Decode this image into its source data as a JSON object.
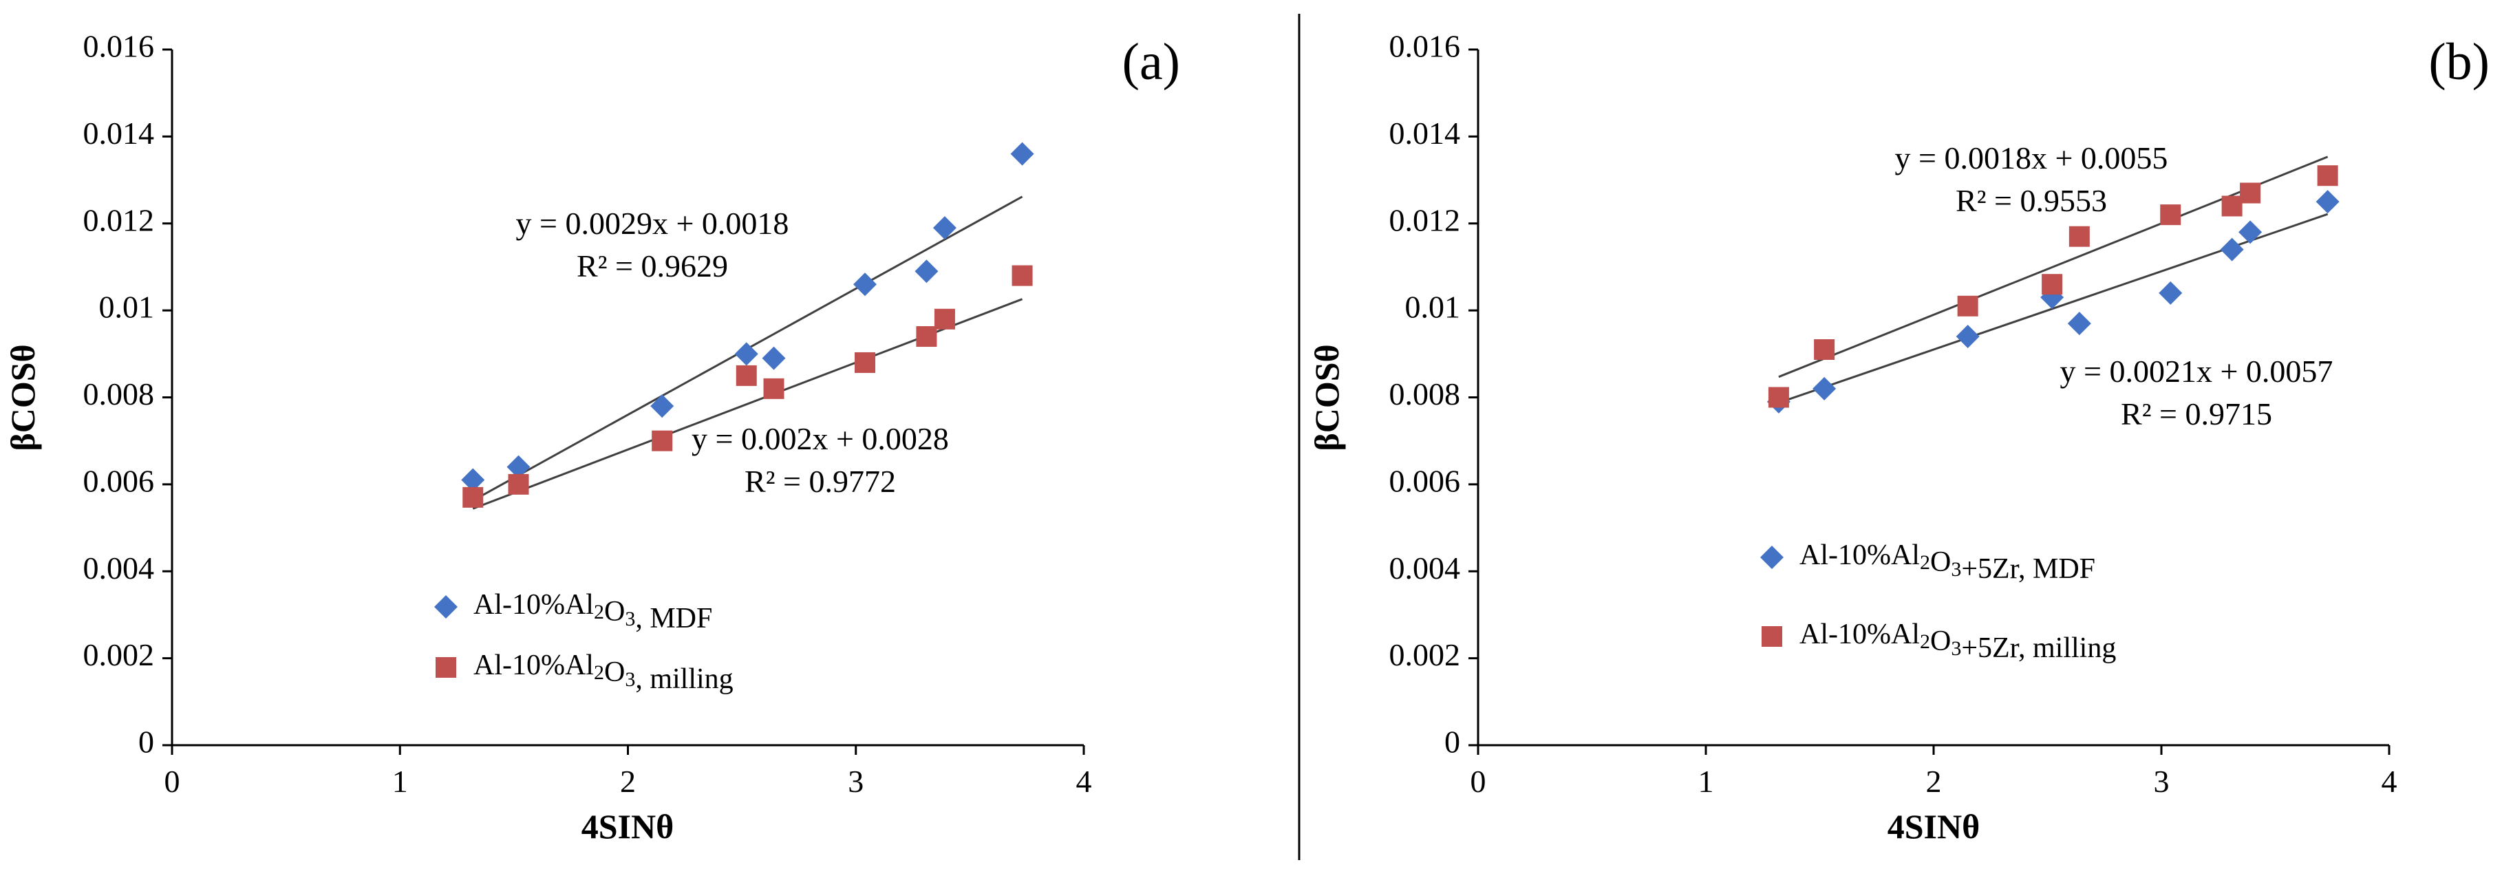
{
  "colors": {
    "mdf": "#4472C4",
    "milling": "#C0504D",
    "trendline": "#404040",
    "axis": "#000000"
  },
  "chart_data": [
    {
      "type": "scatter",
      "panel_label": "(a)",
      "xlabel": "4SINθ",
      "ylabel": "βCOSθ",
      "xlim": [
        0,
        4
      ],
      "ylim": [
        0,
        0.016
      ],
      "x_ticks": [
        "0",
        "1",
        "2",
        "3",
        "4"
      ],
      "y_ticks": [
        "0",
        "0.002",
        "0.004",
        "0.006",
        "0.008",
        "0.01",
        "0.012",
        "0.014",
        "0.016"
      ],
      "grid": false,
      "legend_position": "bottom-left",
      "series": [
        {
          "name": "Al-10%Al2O3, MDF",
          "legend": {
            "prefix": "Al-10%Al",
            "sub1": "2",
            "mid": "O",
            "sub2": "3",
            "suffix": ", MDF"
          },
          "marker": "diamond",
          "points": [
            [
              1.32,
              0.0061
            ],
            [
              1.52,
              0.0064
            ],
            [
              2.15,
              0.0078
            ],
            [
              2.52,
              0.009
            ],
            [
              2.64,
              0.0089
            ],
            [
              3.04,
              0.0106
            ],
            [
              3.31,
              0.0109
            ],
            [
              3.39,
              0.0119
            ],
            [
              3.73,
              0.0136
            ]
          ],
          "trendline": {
            "slope": 0.0029,
            "intercept": 0.0018,
            "x_range": [
              1.32,
              3.73
            ]
          },
          "equation": "y = 0.0029x + 0.0018",
          "r2": "R² = 0.9629"
        },
        {
          "name": "Al-10%Al2O3, milling",
          "legend": {
            "prefix": "Al-10%Al",
            "sub1": "2",
            "mid": "O",
            "sub2": "3",
            "suffix": ", milling"
          },
          "marker": "square",
          "points": [
            [
              1.32,
              0.0057
            ],
            [
              1.52,
              0.006
            ],
            [
              2.15,
              0.007
            ],
            [
              2.52,
              0.0085
            ],
            [
              2.64,
              0.0082
            ],
            [
              3.04,
              0.0088
            ],
            [
              3.31,
              0.0094
            ],
            [
              3.39,
              0.0098
            ],
            [
              3.73,
              0.0108
            ]
          ],
          "trendline": {
            "slope": 0.002,
            "intercept": 0.0028,
            "x_range": [
              1.32,
              3.73
            ]
          },
          "equation": "y = 0.002x + 0.0028",
          "r2": "R² = 0.9772"
        }
      ]
    },
    {
      "type": "scatter",
      "panel_label": "(b)",
      "xlabel": "4SINθ",
      "ylabel": "βCOSθ",
      "xlim": [
        0,
        4
      ],
      "ylim": [
        0,
        0.016
      ],
      "x_ticks": [
        "0",
        "1",
        "2",
        "3",
        "4"
      ],
      "y_ticks": [
        "0",
        "0.002",
        "0.004",
        "0.006",
        "0.008",
        "0.01",
        "0.012",
        "0.014",
        "0.016"
      ],
      "grid": false,
      "legend_position": "bottom-left",
      "series": [
        {
          "name": "Al-10%Al2O3+5Zr, MDF",
          "legend": {
            "prefix": "Al-10%Al",
            "sub1": "2",
            "mid": "O",
            "sub2": "3",
            "suffix": "+5Zr, MDF"
          },
          "marker": "diamond",
          "points": [
            [
              1.32,
              0.0079
            ],
            [
              1.52,
              0.0082
            ],
            [
              2.15,
              0.0094
            ],
            [
              2.52,
              0.0103
            ],
            [
              2.64,
              0.0097
            ],
            [
              3.04,
              0.0104
            ],
            [
              3.31,
              0.0114
            ],
            [
              3.39,
              0.0118
            ],
            [
              3.73,
              0.0125
            ]
          ],
          "trendline": {
            "slope": 0.0018,
            "intercept": 0.0055,
            "x_range": [
              1.32,
              3.73
            ]
          },
          "equation": "y = 0.0018x + 0.0055",
          "r2": "R² = 0.9553"
        },
        {
          "name": "Al-10%Al2O3+5Zr, milling",
          "legend": {
            "prefix": "Al-10%Al",
            "sub1": "2",
            "mid": "O",
            "sub2": "3",
            "suffix": "+5Zr, milling"
          },
          "marker": "square",
          "points": [
            [
              1.32,
              0.008
            ],
            [
              1.52,
              0.0091
            ],
            [
              2.15,
              0.0101
            ],
            [
              2.52,
              0.0106
            ],
            [
              2.64,
              0.0117
            ],
            [
              3.04,
              0.0122
            ],
            [
              3.31,
              0.0124
            ],
            [
              3.39,
              0.0127
            ],
            [
              3.73,
              0.0131
            ]
          ],
          "trendline": {
            "slope": 0.0021,
            "intercept": 0.0057,
            "x_range": [
              1.32,
              3.73
            ]
          },
          "equation": "y = 0.0021x + 0.0057",
          "r2": "R² = 0.9715"
        }
      ]
    }
  ]
}
